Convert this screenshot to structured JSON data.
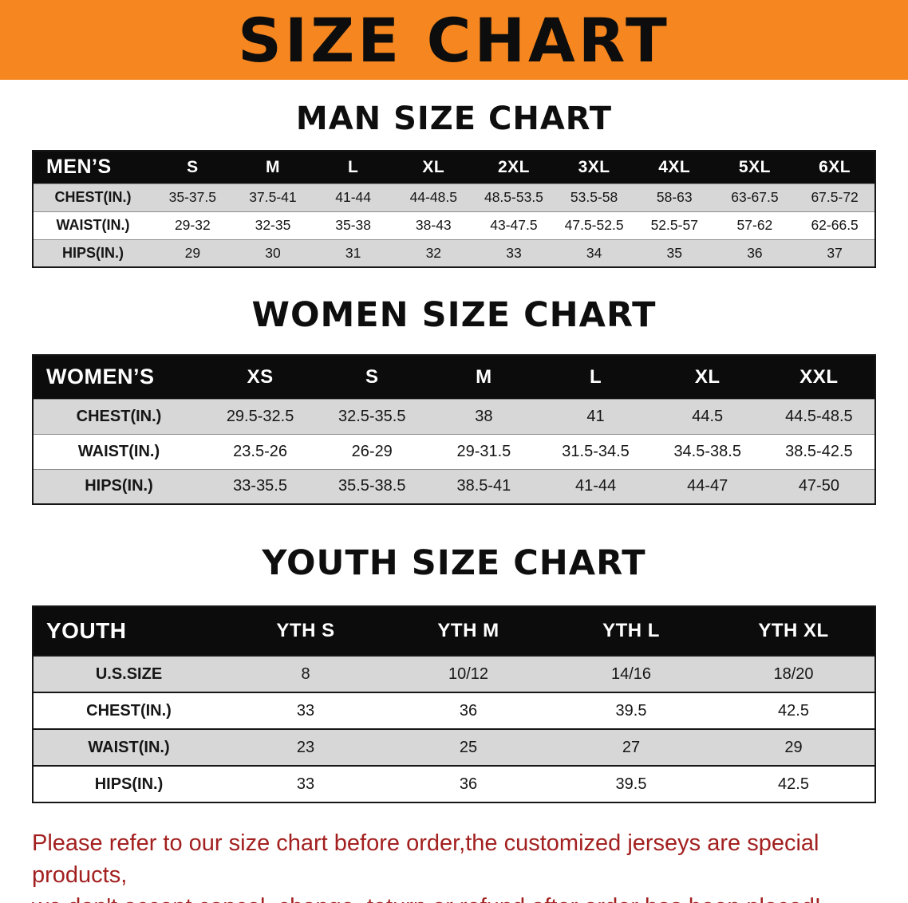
{
  "banner": {
    "title": "SIZE CHART",
    "bg_color": "#f6861f"
  },
  "sections": [
    {
      "heading": "MAN SIZE CHART",
      "table": {
        "header": [
          "MEN’S",
          "S",
          "M",
          "L",
          "XL",
          "2XL",
          "3XL",
          "4XL",
          "5XL",
          "6XL"
        ],
        "rows": [
          [
            "CHEST(IN.)",
            "35-37.5",
            "37.5-41",
            "41-44",
            "44-48.5",
            "48.5-53.5",
            "53.5-58",
            "58-63",
            "63-67.5",
            "67.5-72"
          ],
          [
            "WAIST(IN.)",
            "29-32",
            "32-35",
            "35-38",
            "38-43",
            "43-47.5",
            "47.5-52.5",
            "52.5-57",
            "57-62",
            "62-66.5"
          ],
          [
            "HIPS(IN.)",
            "29",
            "30",
            "31",
            "32",
            "33",
            "34",
            "35",
            "36",
            "37"
          ]
        ]
      }
    },
    {
      "heading": "WOMEN SIZE CHART",
      "table": {
        "header": [
          "WOMEN’S",
          "XS",
          "S",
          "M",
          "L",
          "XL",
          "XXL"
        ],
        "rows": [
          [
            "CHEST(IN.)",
            "29.5-32.5",
            "32.5-35.5",
            "38",
            "41",
            "44.5",
            "44.5-48.5"
          ],
          [
            "WAIST(IN.)",
            "23.5-26",
            "26-29",
            "29-31.5",
            "31.5-34.5",
            "34.5-38.5",
            "38.5-42.5"
          ],
          [
            "HIPS(IN.)",
            "33-35.5",
            "35.5-38.5",
            "38.5-41",
            "41-44",
            "44-47",
            "47-50"
          ]
        ]
      }
    },
    {
      "heading": "YOUTH SIZE CHART",
      "table": {
        "header": [
          "YOUTH",
          "YTH S",
          "YTH M",
          "YTH L",
          "YTH XL"
        ],
        "rows": [
          [
            "U.S.SIZE",
            "8",
            "10/12",
            "14/16",
            "18/20"
          ],
          [
            "CHEST(IN.)",
            "33",
            "36",
            "39.5",
            "42.5"
          ],
          [
            "WAIST(IN.)",
            "23",
            "25",
            "27",
            "29"
          ],
          [
            "HIPS(IN.)",
            "33",
            "36",
            "39.5",
            "42.5"
          ]
        ]
      }
    }
  ],
  "footer": {
    "line1": "Please refer to our size chart before order,the customized jerseys are special products,",
    "line2": "we don't accept cancel, change, teturn or refund after order has been placed!",
    "text_color": "#a32020"
  }
}
